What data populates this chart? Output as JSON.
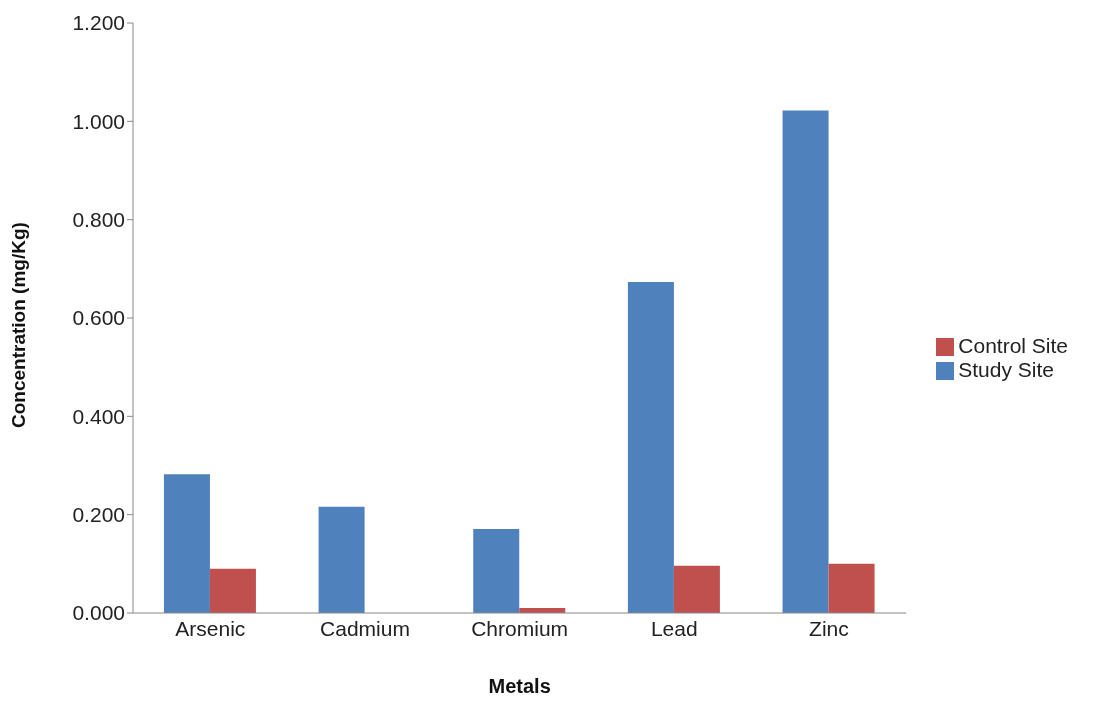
{
  "chart_data": {
    "type": "bar",
    "xlabel": "Metals",
    "ylabel": "Concentration (mg/Kg)",
    "categories": [
      "Arsenic",
      "Cadmium",
      "Chromium",
      "Lead",
      "Zinc"
    ],
    "series": [
      {
        "name": "Study Site",
        "color": "#4f81bd",
        "values": [
          0.282,
          0.216,
          0.171,
          0.673,
          1.022
        ]
      },
      {
        "name": "Control Site",
        "color": "#c0504d",
        "values": [
          0.09,
          0,
          0.01,
          0.096,
          0.1
        ]
      }
    ],
    "ylim": [
      0,
      1.2
    ],
    "yticks": [
      {
        "value": 0,
        "label": "0.000"
      },
      {
        "value": 0.2,
        "label": "0.200"
      },
      {
        "value": 0.4,
        "label": "0.400"
      },
      {
        "value": 0.6,
        "label": "0.600"
      },
      {
        "value": 0.8,
        "label": "0.800"
      },
      {
        "value": 1,
        "label": "1.000"
      },
      {
        "value": 1.2,
        "label": "1.200"
      }
    ],
    "grid": false,
    "legend": "right"
  }
}
